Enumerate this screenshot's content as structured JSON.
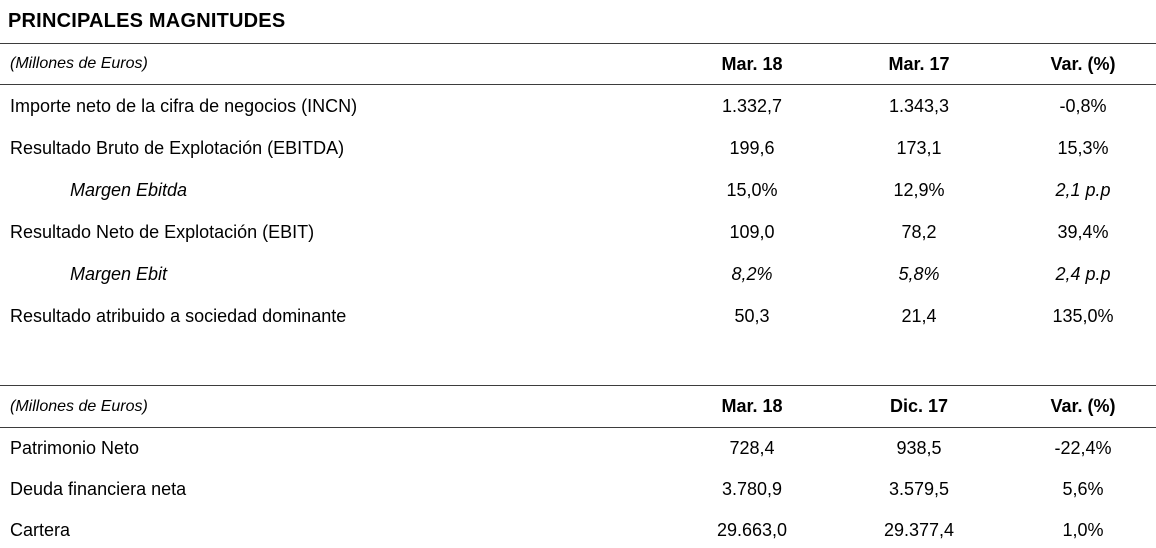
{
  "page": {
    "title": "PRINCIPALES MAGNITUDES"
  },
  "tables": [
    {
      "unit_label": "(Millones de Euros)",
      "columns": [
        "Mar. 18",
        "Mar. 17",
        "Var. (%)"
      ],
      "rows": [
        {
          "label": "Importe neto de la cifra de negocios (INCN)",
          "values": [
            "1.332,7",
            "1.343,3",
            "-0,8%"
          ]
        },
        {
          "label": "Resultado Bruto de Explotación (EBITDA)",
          "values": [
            "199,6",
            "173,1",
            "15,3%"
          ]
        },
        {
          "label": "Margen Ebitda",
          "values": [
            "15,0%",
            "12,9%",
            "2,1 p.p"
          ]
        },
        {
          "label": "Resultado Neto de Explotación (EBIT)",
          "values": [
            "109,0",
            "78,2",
            "39,4%"
          ]
        },
        {
          "label": "Margen Ebit",
          "values": [
            "8,2%",
            "5,8%",
            "2,4 p.p"
          ]
        },
        {
          "label": "Resultado atribuido a sociedad dominante",
          "values": [
            "50,3",
            "21,4",
            "135,0%"
          ]
        }
      ]
    },
    {
      "unit_label": "(Millones de Euros)",
      "columns": [
        "Mar. 18",
        "Dic. 17",
        "Var. (%)"
      ],
      "rows": [
        {
          "label": "Patrimonio Neto",
          "values": [
            "728,4",
            "938,5",
            "-22,4%"
          ]
        },
        {
          "label": "Deuda financiera neta",
          "values": [
            "3.780,9",
            "3.579,5",
            "5,6%"
          ]
        },
        {
          "label": "Cartera",
          "values": [
            "29.663,0",
            "29.377,4",
            "1,0%"
          ]
        }
      ]
    }
  ],
  "colors": {
    "text": "#000000",
    "rule": "#3d3d3d",
    "background": "#ffffff"
  }
}
